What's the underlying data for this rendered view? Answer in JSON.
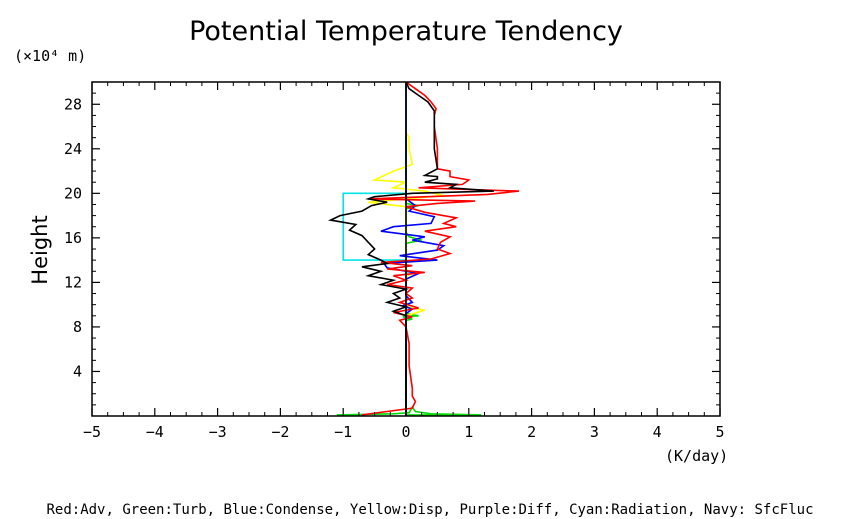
{
  "chart_data": {
    "type": "line",
    "title": "Potential Temperature Tendency",
    "ylabel": "Height",
    "yunit": "(×10⁴ m)",
    "xunit": "(K/day)",
    "legend_note": "Red:Adv, Green:Turb, Blue:Condense, Yellow:Disp, Purple:Diff, Cyan:Radiation, Navy: SfcFluc",
    "xlim": [
      -5,
      5
    ],
    "ylim": [
      0,
      30
    ],
    "xticks": [
      -5,
      -4,
      -3,
      -2,
      -1,
      0,
      1,
      2,
      3,
      4,
      5
    ],
    "yticks": [
      4,
      8,
      12,
      16,
      20,
      24,
      28
    ],
    "xtick_labels": [
      "−5",
      "−4",
      "−3",
      "−2",
      "−1",
      "0",
      "1",
      "2",
      "3",
      "4",
      "5"
    ],
    "ytick_labels": [
      "4",
      "8",
      "12",
      "16",
      "20",
      "24",
      "28"
    ],
    "grid": false,
    "series": [
      {
        "name": "Radiation",
        "color": "#00e5e5",
        "points": [
          [
            0,
            0
          ],
          [
            0,
            14
          ],
          [
            -1,
            14
          ],
          [
            -1,
            20
          ],
          [
            0,
            20
          ],
          [
            0,
            30
          ]
        ]
      },
      {
        "name": "Turb",
        "color": "#00dd00",
        "points": [
          [
            -1.1,
            0.1
          ],
          [
            -0.2,
            0.2
          ],
          [
            0.05,
            0.3
          ],
          [
            0.1,
            0.8
          ],
          [
            0.15,
            0.4
          ],
          [
            0.4,
            0.2
          ],
          [
            1.2,
            0.1
          ],
          [
            0,
            0.1
          ],
          [
            0,
            8.6
          ],
          [
            0.1,
            8.7
          ],
          [
            -0.05,
            8.9
          ],
          [
            0.2,
            9.0
          ],
          [
            0,
            9.2
          ],
          [
            0,
            15.5
          ],
          [
            0.25,
            15.8
          ],
          [
            0.05,
            16.1
          ],
          [
            0,
            16.5
          ],
          [
            0,
            18.6
          ],
          [
            0.2,
            18.9
          ],
          [
            0,
            19.1
          ],
          [
            0,
            30
          ]
        ]
      },
      {
        "name": "Disp",
        "color": "#ffff00",
        "points": [
          [
            0,
            0
          ],
          [
            0,
            9
          ],
          [
            0.3,
            9.5
          ],
          [
            0,
            9.8
          ],
          [
            0,
            12.5
          ],
          [
            0.1,
            12.8
          ],
          [
            0,
            13.2
          ],
          [
            0,
            18.8
          ],
          [
            -0.6,
            19.2
          ],
          [
            0.6,
            19.8
          ],
          [
            0.3,
            20.2
          ],
          [
            -0.2,
            20.5
          ],
          [
            0,
            21
          ],
          [
            -0.5,
            21.2
          ],
          [
            -0.2,
            22
          ],
          [
            0.1,
            22.6
          ],
          [
            0.05,
            24
          ],
          [
            0.05,
            25
          ],
          [
            0,
            25.5
          ],
          [
            0,
            30
          ]
        ]
      },
      {
        "name": "Condense",
        "color": "#0000ff",
        "points": [
          [
            0,
            0
          ],
          [
            0,
            9.2
          ],
          [
            0.1,
            9.6
          ],
          [
            -0.05,
            9.9
          ],
          [
            0.1,
            10.2
          ],
          [
            0,
            10.8
          ],
          [
            0,
            12.3
          ],
          [
            0.2,
            12.8
          ],
          [
            -0.3,
            13.3
          ],
          [
            -0.35,
            13.7
          ],
          [
            0.5,
            14.0
          ],
          [
            -0.1,
            14.4
          ],
          [
            0.5,
            14.9
          ],
          [
            0.6,
            15.3
          ],
          [
            0.1,
            15.8
          ],
          [
            0.3,
            16.1
          ],
          [
            -0.4,
            16.6
          ],
          [
            -0.2,
            17.0
          ],
          [
            0.4,
            17.3
          ],
          [
            0.45,
            17.9
          ],
          [
            0.05,
            18.4
          ],
          [
            0.15,
            18.9
          ],
          [
            0,
            19.5
          ],
          [
            0,
            30
          ]
        ]
      },
      {
        "name": "Adv",
        "color": "#ff0000",
        "points": [
          [
            -0.7,
            0.1
          ],
          [
            -0.3,
            0.4
          ],
          [
            0.1,
            0.7
          ],
          [
            0.15,
            1.3
          ],
          [
            0.1,
            1.8
          ],
          [
            0.1,
            2.5
          ],
          [
            0.05,
            4.5
          ],
          [
            0.05,
            6.5
          ],
          [
            0.0,
            8.0
          ],
          [
            -0.1,
            8.6
          ],
          [
            0.1,
            8.9
          ],
          [
            -0.2,
            9.3
          ],
          [
            0.2,
            9.7
          ],
          [
            -0.1,
            10.2
          ],
          [
            0.1,
            10.6
          ],
          [
            0.0,
            11.0
          ],
          [
            0.1,
            11.5
          ],
          [
            -0.3,
            11.8
          ],
          [
            0.0,
            12.2
          ],
          [
            -0.2,
            12.6
          ],
          [
            0.3,
            12.9
          ],
          [
            -0.3,
            13.2
          ],
          [
            0.1,
            13.5
          ],
          [
            -0.4,
            13.8
          ],
          [
            0.4,
            14.1
          ],
          [
            0.7,
            14.6
          ],
          [
            0.5,
            15.0
          ],
          [
            0.55,
            15.6
          ],
          [
            0.7,
            16.1
          ],
          [
            0.3,
            16.6
          ],
          [
            0.8,
            17.0
          ],
          [
            0.6,
            17.3
          ],
          [
            0.8,
            17.8
          ],
          [
            0.3,
            18.3
          ],
          [
            0.0,
            18.8
          ],
          [
            0.5,
            19.1
          ],
          [
            1.1,
            19.3
          ],
          [
            -0.6,
            19.5
          ],
          [
            1.3,
            19.9
          ],
          [
            1.8,
            20.2
          ],
          [
            0.2,
            20.5
          ],
          [
            0.9,
            20.8
          ],
          [
            1.0,
            21.2
          ],
          [
            0.7,
            21.5
          ],
          [
            0.7,
            22
          ],
          [
            0.5,
            22.2
          ],
          [
            0.5,
            24
          ],
          [
            0.45,
            26
          ],
          [
            0.45,
            27
          ],
          [
            0.48,
            27.6
          ],
          [
            0.4,
            28.2
          ],
          [
            0.3,
            28.8
          ],
          [
            0.15,
            29.4
          ],
          [
            0.0,
            30
          ]
        ]
      },
      {
        "name": "Black (total)",
        "color": "#000000",
        "points": [
          [
            0,
            0
          ],
          [
            0,
            9
          ],
          [
            -0.2,
            9.4
          ],
          [
            0.0,
            9.8
          ],
          [
            -0.3,
            10.2
          ],
          [
            -0.1,
            10.6
          ],
          [
            -0.2,
            11.0
          ],
          [
            0.0,
            11.4
          ],
          [
            -0.4,
            11.8
          ],
          [
            -0.2,
            12.2
          ],
          [
            -0.6,
            12.6
          ],
          [
            -0.4,
            13.0
          ],
          [
            -0.7,
            13.4
          ],
          [
            -0.3,
            13.7
          ],
          [
            -0.4,
            14.0
          ],
          [
            -0.6,
            14.5
          ],
          [
            -0.5,
            15.0
          ],
          [
            -0.6,
            15.6
          ],
          [
            -0.7,
            16.2
          ],
          [
            -0.9,
            16.7
          ],
          [
            -0.8,
            17.2
          ],
          [
            -1.2,
            17.6
          ],
          [
            -1.05,
            18.0
          ],
          [
            -0.7,
            18.4
          ],
          [
            -0.55,
            18.9
          ],
          [
            -0.3,
            19.2
          ],
          [
            -0.6,
            19.5
          ],
          [
            -0.5,
            19.7
          ],
          [
            0.1,
            20.0
          ],
          [
            1.4,
            20.2
          ],
          [
            0.7,
            20.5
          ],
          [
            0.8,
            20.8
          ],
          [
            0.3,
            21.0
          ],
          [
            0.5,
            21.3
          ],
          [
            0.5,
            21.5
          ],
          [
            0.3,
            21.6
          ],
          [
            0.5,
            22.2
          ],
          [
            0.45,
            24
          ],
          [
            0.45,
            26
          ],
          [
            0.45,
            27.4
          ],
          [
            0.35,
            28.2
          ],
          [
            0.2,
            28.8
          ],
          [
            0.05,
            29.4
          ],
          [
            0,
            30
          ]
        ]
      },
      {
        "name": "Zero line",
        "color": "#000000",
        "points": [
          [
            0,
            0
          ],
          [
            0,
            30
          ]
        ]
      }
    ]
  }
}
